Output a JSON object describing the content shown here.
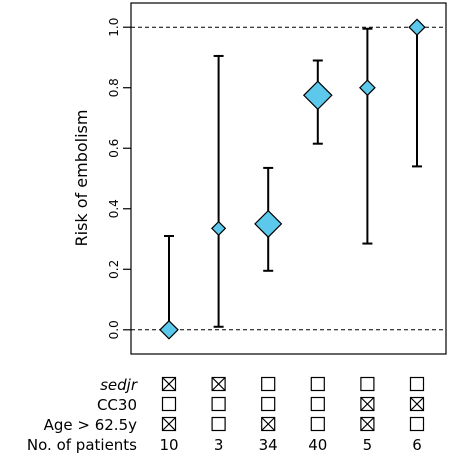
{
  "chart_data": {
    "type": "scatter",
    "ylabel": "Risk of embolism",
    "ylim": [
      -0.08,
      1.08
    ],
    "yticks": [
      "0.0",
      "0.2",
      "0.4",
      "0.6",
      "0.8",
      "1.0"
    ],
    "ytick_values": [
      0.0,
      0.2,
      0.4,
      0.6,
      0.8,
      1.0
    ],
    "reference_lines": [
      0.0,
      1.0
    ],
    "groups": [
      {
        "value": 0.0,
        "lower": 0.0,
        "upper": 0.31,
        "n": 10
      },
      {
        "value": 0.335,
        "lower": 0.01,
        "upper": 0.905,
        "n": 3
      },
      {
        "value": 0.35,
        "lower": 0.195,
        "upper": 0.535,
        "n": 34
      },
      {
        "value": 0.775,
        "lower": 0.615,
        "upper": 0.89,
        "n": 40
      },
      {
        "value": 0.8,
        "lower": 0.285,
        "upper": 0.995,
        "n": 5
      },
      {
        "value": 1.0,
        "lower": 0.54,
        "upper": 1.0,
        "n": 6
      }
    ],
    "marker_color": "#5bc8ec",
    "grid": false
  },
  "table": {
    "row_labels": {
      "sedjr": "sedjr",
      "cc30": "CC30",
      "age": "Age > 62.5y",
      "patients": "No. of patients"
    },
    "sedjr": [
      true,
      true,
      false,
      false,
      false,
      false
    ],
    "cc30": [
      false,
      false,
      false,
      false,
      true,
      true
    ],
    "age": [
      true,
      false,
      true,
      false,
      true,
      false
    ],
    "patients": [
      "10",
      "3",
      "34",
      "40",
      "5",
      "6"
    ]
  }
}
